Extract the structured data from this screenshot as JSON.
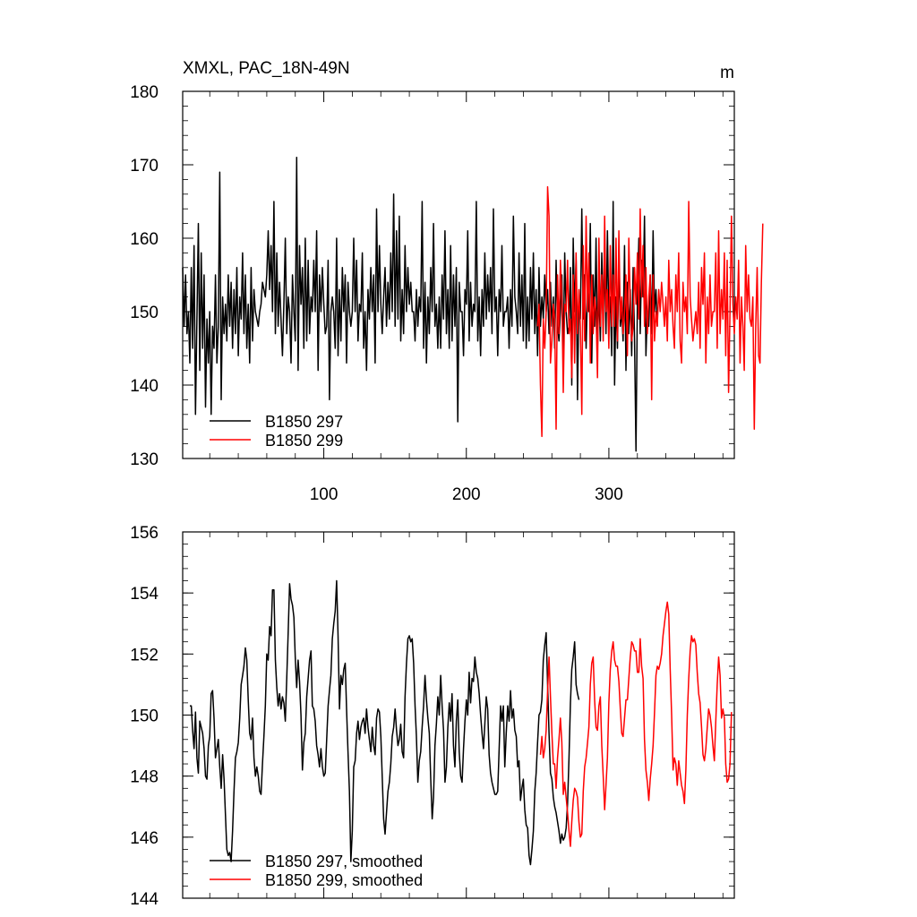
{
  "chart_data": [
    {
      "type": "line",
      "title": "XMXL, PAC_18N-49N",
      "units": "m",
      "xlim": [
        1,
        388
      ],
      "ylim": [
        130,
        180
      ],
      "xticks": [
        100,
        200,
        300
      ],
      "yticks": [
        130,
        140,
        150,
        160,
        170,
        180
      ],
      "xtick_labels": [
        "100",
        "200",
        "300"
      ],
      "ytick_labels": [
        "130",
        "140",
        "150",
        "160",
        "170",
        "180"
      ],
      "legend_position": "bottom-left",
      "series": [
        {
          "name": "B1850 297",
          "color": "#000000",
          "x_start": 1,
          "values": [
            156,
            148,
            155,
            147,
            150,
            143,
            156,
            145,
            159,
            136,
            149,
            162,
            142,
            158,
            145,
            155,
            137,
            149,
            143,
            150,
            136,
            148,
            145,
            155,
            143,
            148,
            169,
            138,
            152,
            147,
            151,
            146,
            155,
            148,
            154,
            145,
            153,
            147,
            156,
            144,
            152,
            149,
            158,
            147,
            155,
            145,
            151,
            143,
            156,
            146,
            153,
            150,
            149,
            148,
            150,
            151,
            154,
            153,
            152,
            155,
            161,
            153,
            159,
            150,
            165,
            147,
            158,
            148,
            154,
            149,
            144,
            151,
            160,
            147,
            152,
            150,
            143,
            155,
            150,
            146,
            171,
            142,
            159,
            151,
            156,
            145,
            160,
            146,
            157,
            147,
            152,
            150,
            157,
            150,
            161,
            142,
            155,
            150,
            156,
            151,
            147,
            148,
            157,
            138,
            150,
            152,
            150,
            145,
            160,
            144,
            153,
            146,
            156,
            150,
            155,
            143,
            154,
            150,
            148,
            150,
            160,
            150,
            157,
            146,
            151,
            150,
            158,
            145,
            150,
            142,
            153,
            149,
            156,
            150,
            155,
            143,
            164,
            150,
            159,
            151,
            147,
            152,
            156,
            148,
            154,
            149,
            158,
            150,
            166,
            148,
            161,
            149,
            163,
            146,
            153,
            147,
            159,
            150,
            156,
            151,
            154,
            150,
            150,
            146,
            153,
            148,
            152,
            150,
            165,
            145,
            154,
            143,
            152,
            147,
            156,
            150,
            162,
            148,
            151,
            145,
            152,
            145,
            155,
            149,
            161,
            147,
            153,
            145,
            159,
            146,
            155,
            148,
            156,
            135,
            154,
            150,
            150,
            144,
            153,
            151,
            161,
            146,
            154,
            148,
            151,
            150,
            165,
            146,
            152,
            144,
            153,
            148,
            158,
            149,
            155,
            150,
            156,
            147,
            164,
            150,
            152,
            144,
            153,
            150,
            159,
            148,
            150,
            150,
            152,
            145,
            153,
            148,
            163,
            152,
            150,
            147,
            158,
            148,
            155,
            146,
            162,
            145,
            152,
            146,
            156,
            149,
            158,
            147,
            153,
            144,
            156,
            148,
            152,
            149,
            155,
            150,
            153,
            147,
            154,
            148,
            152,
            145,
            157,
            148,
            146,
            150,
            155,
            143,
            158,
            150,
            147,
            148,
            156,
            140,
            160,
            150,
            157,
            138,
            152,
            149,
            164,
            149,
            155,
            145,
            153,
            150,
            162,
            143,
            155,
            148,
            160,
            145,
            153,
            146,
            158,
            150,
            156,
            147,
            161,
            149,
            152,
            144,
            165,
            140,
            152,
            145,
            157,
            148,
            150,
            146,
            159,
            142,
            154,
            147,
            153,
            144,
            156,
            146,
            131,
            152,
            160,
            147,
            157,
            152,
            163,
            144,
            150,
            148,
            155,
            147,
            161,
            150,
            153,
            148
          ],
          "y_range_note": "min ~131, max ~171"
        },
        {
          "name": "B1850 299",
          "color": "#ff0000",
          "x_start": 250,
          "values": [
            148,
            151,
            140,
            133,
            149,
            145,
            150,
            167,
            163,
            143,
            146,
            151,
            149,
            134,
            155,
            147,
            157,
            152,
            139,
            151,
            150,
            157,
            147,
            149,
            141,
            155,
            143,
            158,
            147,
            153,
            148,
            136,
            159,
            146,
            163,
            150,
            158,
            143,
            155,
            147,
            152,
            150,
            141,
            160,
            148,
            155,
            146,
            163,
            150,
            153,
            145,
            159,
            148,
            155,
            148,
            160,
            146,
            161,
            149,
            152,
            147,
            150,
            155,
            144,
            160,
            151,
            146,
            148,
            156,
            151,
            158,
            149,
            164,
            152,
            159,
            148,
            156,
            147,
            152,
            155,
            138,
            155,
            146,
            150,
            148,
            153,
            150,
            154,
            151,
            148,
            152,
            146,
            157,
            150,
            153,
            148,
            145,
            155,
            150,
            158,
            146,
            143,
            154,
            150,
            152,
            147,
            165,
            152,
            149,
            146,
            148,
            150,
            147,
            154,
            145,
            156,
            151,
            158,
            143,
            152,
            147,
            155,
            148,
            150,
            150,
            158,
            145,
            161,
            147,
            153,
            149,
            158,
            144,
            157,
            139,
            150,
            163,
            151,
            147,
            152,
            149,
            157,
            143,
            152,
            148,
            142,
            159,
            150,
            155,
            149,
            148,
            152,
            134,
            148,
            156,
            144,
            143,
            154,
            162
          ]
        }
      ]
    },
    {
      "type": "line",
      "title": "",
      "xlim": [
        1,
        388
      ],
      "ylim": [
        144,
        156
      ],
      "xticks": [
        100,
        200,
        300
      ],
      "yticks": [
        144,
        146,
        148,
        150,
        152,
        154,
        156
      ],
      "ytick_labels": [
        "144",
        "146",
        "148",
        "150",
        "152",
        "154",
        "156"
      ],
      "legend_position": "bottom-left",
      "series": [
        {
          "name": "B1850 297, smoothed",
          "color": "#000000",
          "x_start": 6,
          "values": [
            150.3,
            150.3,
            149.5,
            148.9,
            150.1,
            148.6,
            148.1,
            149.8,
            149.6,
            149.4,
            148.9,
            148.0,
            147.9,
            149.0,
            149.3,
            150.7,
            150.8,
            149.9,
            148.6,
            148.9,
            149.2,
            148.3,
            147.6,
            148.7,
            147.9,
            146.7,
            145.6,
            145.4,
            145.5,
            145.2,
            146.2,
            147.5,
            148.6,
            148.8,
            149.1,
            149.9,
            151.0,
            151.3,
            151.6,
            152.2,
            151.8,
            150.5,
            149.4,
            149.2,
            149.9,
            148.6,
            148.0,
            148.3,
            148.0,
            147.5,
            147.4,
            148.4,
            149.3,
            150.3,
            152.0,
            151.8,
            152.9,
            152.6,
            154.1,
            154.1,
            151.8,
            150.9,
            150.3,
            150.7,
            150.2,
            150.6,
            150.4,
            149.8,
            151.2,
            152.7,
            154.3,
            153.8,
            153.6,
            153.2,
            151.9,
            150.9,
            151.8,
            151.1,
            150.0,
            148.2,
            149.1,
            149.4,
            150.6,
            151.2,
            151.8,
            152.1,
            150.3,
            150.2,
            149.8,
            149.0,
            148.7,
            148.3,
            148.9,
            148.3,
            148.0,
            148.1,
            149.2,
            150.3,
            150.8,
            151.3,
            152.5,
            153.0,
            153.4,
            154.4,
            152.6,
            150.2,
            151.3,
            151.0,
            151.5,
            151.7,
            150.2,
            148.8,
            147.5,
            145.2,
            146.2,
            148.3,
            148.5,
            149.4,
            149.8,
            149.2,
            149.6,
            149.8,
            149.9,
            149.4,
            150.2,
            149.6,
            149.2,
            148.8,
            149.6,
            149.0,
            148.7,
            149.9,
            150.2,
            150.1,
            149.3,
            148.0,
            146.6,
            146.1,
            146.8,
            147.5,
            147.8,
            148.4,
            149.3,
            149.6,
            150.2,
            149.5,
            149.0,
            149.2,
            149.7,
            148.8,
            148.6,
            150.6,
            151.7,
            152.5,
            152.6,
            152.4,
            152.5,
            151.7,
            150.3,
            149.3,
            147.8,
            148.5,
            148.8,
            149.6,
            150.3,
            151.3,
            150.5,
            149.9,
            149.4,
            147.9,
            146.6,
            147.3,
            149.0,
            149.7,
            150.6,
            150.0,
            151.3,
            150.3,
            149.5,
            147.8,
            148.3,
            149.6,
            150.4,
            149.8,
            150.7,
            149.0,
            148.3,
            149.8,
            150.5,
            148.8,
            148.0,
            147.8,
            148.9,
            149.8,
            150.5,
            150.0,
            151.4,
            150.4,
            151.2,
            151.1,
            151.9,
            151.4,
            151.2,
            150.7,
            150.0,
            149.4,
            148.9,
            149.7,
            150.6,
            150.2,
            148.7,
            148.1,
            147.8,
            147.6,
            147.4,
            147.4,
            147.5,
            148.9,
            150.3,
            149.8,
            150.3,
            148.3,
            149.4,
            150.3,
            149.8,
            150.8,
            149.9,
            150.2,
            149.5,
            149.3,
            148.3,
            148.5,
            147.2,
            147.6,
            147.9,
            146.9,
            146.4,
            146.3,
            145.4,
            145.1,
            145.6,
            146.2,
            147.5,
            148.1,
            149.1,
            150.0,
            150.1,
            150.5,
            151.8,
            152.3,
            152.7,
            151.0,
            149.4,
            148.1,
            147.9,
            147.3,
            147.0,
            146.8,
            146.5,
            146.2,
            145.8,
            146.1,
            145.9,
            146.0,
            146.3,
            147.1,
            148.6,
            150.4,
            151.5,
            151.9,
            152.4,
            151.0,
            150.7,
            150.5
          ]
        },
        {
          "name": "B1850 299, smoothed",
          "color": "#ff0000",
          "x_start": 252,
          "values": [
            148.7,
            149.3,
            148.6,
            148.9,
            149.5,
            150.8,
            151.9,
            150.6,
            149.4,
            148.4,
            148.4,
            147.6,
            148.6,
            149.2,
            149.9,
            149.1,
            147.4,
            147.8,
            147.3,
            146.8,
            146.2,
            145.7,
            146.5,
            147.2,
            147.6,
            147.5,
            147.3,
            146.5,
            146.0,
            146.1,
            147.5,
            148.3,
            148.6,
            149.1,
            149.6,
            151.0,
            151.7,
            151.9,
            150.5,
            149.6,
            149.5,
            150.3,
            150.6,
            149.0,
            148.0,
            146.9,
            147.7,
            148.6,
            150.4,
            151.5,
            152.1,
            152.4,
            151.8,
            151.6,
            151.6,
            151.1,
            150.2,
            149.4,
            149.3,
            149.9,
            150.5,
            150.5,
            151.2,
            151.9,
            152.4,
            152.3,
            152.1,
            152.1,
            151.4,
            151.4,
            152.5,
            151.6,
            151.2,
            149.2,
            148.2,
            147.8,
            147.2,
            147.9,
            148.4,
            149.0,
            150.1,
            151.3,
            151.6,
            151.5,
            151.7,
            152.0,
            152.6,
            153.0,
            153.4,
            153.7,
            153.3,
            151.5,
            150.0,
            148.2,
            148.6,
            148.4,
            147.7,
            148.5,
            148.1,
            147.7,
            147.5,
            147.1,
            148.2,
            150.0,
            151.2,
            152.1,
            152.6,
            152.4,
            152.5,
            152.3,
            151.4,
            150.7,
            150.4,
            149.6,
            148.7,
            148.5,
            148.9,
            149.6,
            150.2,
            150.0,
            149.6,
            149.0,
            148.5,
            149.8,
            151.0,
            151.9,
            151.3,
            149.9,
            150.2,
            149.9,
            148.4,
            147.8,
            147.9,
            148.4,
            150.1
          ]
        }
      ]
    }
  ],
  "legend": {
    "top": [
      "B1850 297",
      "B1850 299"
    ],
    "bottom": [
      "B1850 297, smoothed",
      "B1850 299, smoothed"
    ]
  }
}
